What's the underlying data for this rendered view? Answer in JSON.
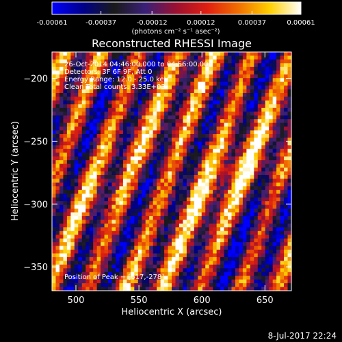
{
  "colorbar": {
    "ticks": [
      "-0.00061",
      "-0.00037",
      "-0.00012",
      "0.00012",
      "0.00037",
      "0.00061"
    ],
    "range": [
      -0.00061,
      0.00061
    ],
    "unit": "(photons cm⁻² s⁻¹ asec⁻²)",
    "colors": [
      "#0000ff",
      "#00008a",
      "#1a1a1a",
      "#3a2078",
      "#9c1030",
      "#e02010",
      "#f07000",
      "#ffd000",
      "#ffffff"
    ]
  },
  "annotations": {
    "time": "26-Oct-2014 04:46:00.000 to 04:56:00.000",
    "detectors": "Detectors: 3F 6F 9F, Att 0",
    "energy": "Energy Range: 12.0 - 25.0 keV",
    "clean": "Clean    Total counts: 3.33E+03",
    "peak": "Position of Peak = [617,-278]"
  },
  "footer_date": "8-Jul-2017 22:24",
  "chart_data": {
    "type": "heatmap",
    "title": "Reconstructed RHESSI Image",
    "xlabel": "Heliocentric X (arcsec)",
    "ylabel": "Heliocentric Y (arcsec)",
    "xlim": [
      481,
      671
    ],
    "ylim": [
      -369,
      -179
    ],
    "xticks": [
      500,
      550,
      600,
      650
    ],
    "yticks": [
      -200,
      -250,
      -300,
      -350
    ],
    "grid": false,
    "value_range": [
      -0.00061,
      0.00061
    ],
    "peak": [
      617,
      -278
    ],
    "pattern": "diagonal striping"
  }
}
